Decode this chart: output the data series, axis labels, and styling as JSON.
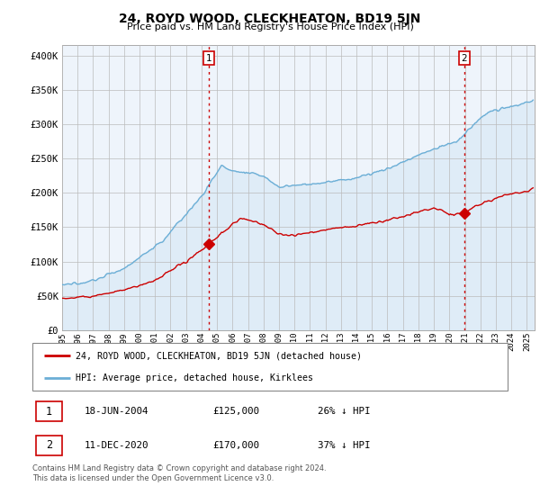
{
  "title": "24, ROYD WOOD, CLECKHEATON, BD19 5JN",
  "subtitle": "Price paid vs. HM Land Registry's House Price Index (HPI)",
  "ylabel_ticks": [
    "£0",
    "£50K",
    "£100K",
    "£150K",
    "£200K",
    "£250K",
    "£300K",
    "£350K",
    "£400K"
  ],
  "ytick_values": [
    0,
    50000,
    100000,
    150000,
    200000,
    250000,
    300000,
    350000,
    400000
  ],
  "ylim": [
    0,
    415000
  ],
  "xlim_start": 1995.0,
  "xlim_end": 2025.5,
  "sale1_x": 2004.46,
  "sale1_y": 125000,
  "sale2_x": 2020.95,
  "sale2_y": 170000,
  "hpi_color": "#6baed6",
  "hpi_fill_color": "#d6e8f5",
  "price_color": "#cc0000",
  "vline_color": "#cc0000",
  "legend_label_price": "24, ROYD WOOD, CLECKHEATON, BD19 5JN (detached house)",
  "legend_label_hpi": "HPI: Average price, detached house, Kirklees",
  "annot1_date": "18-JUN-2004",
  "annot1_price": "£125,000",
  "annot1_hpi": "26% ↓ HPI",
  "annot2_date": "11-DEC-2020",
  "annot2_price": "£170,000",
  "annot2_hpi": "37% ↓ HPI",
  "footer": "Contains HM Land Registry data © Crown copyright and database right 2024.\nThis data is licensed under the Open Government Licence v3.0.",
  "background_color": "#ffffff",
  "plot_bg_color": "#eef4fb",
  "grid_color": "#bbbbbb"
}
